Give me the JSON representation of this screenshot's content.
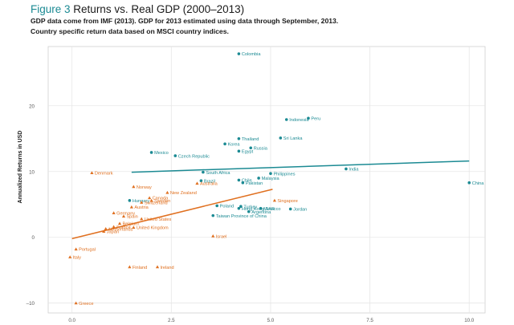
{
  "figure": {
    "number": "Figure 3",
    "title": "Returns vs. Real GDP (2000–2013)",
    "subtitle_lines": [
      "GDP data come from IMF (2013). GDP for 2013 estimated using data through September, 2013.",
      "Country specific return data based on MSCI country indices."
    ]
  },
  "colors": {
    "developed": "#e07020",
    "emerging": "#1b8a93",
    "accent": "#1b8a93",
    "grid": "#e6e6e6",
    "axis_text": "#555555"
  },
  "chart_data": {
    "type": "scatter",
    "title": "Returns vs. Real GDP (2000–2013)",
    "xlabel": "",
    "ylabel": "Annualized Returns in USD",
    "xlim": [
      -0.6,
      10.4
    ],
    "ylim": [
      -11.5,
      29
    ],
    "x_ticks": [
      0.0,
      2.5,
      5.0,
      7.5,
      10.0
    ],
    "x_tick_labels": [
      "0.0",
      "2.5",
      "5.0",
      "7.5",
      "10.0"
    ],
    "y_ticks": [
      -10,
      0,
      10,
      20
    ],
    "y_tick_labels": [
      "–10",
      "0",
      "10",
      "20"
    ],
    "grid": true,
    "series": [
      {
        "group": "emerging",
        "marker": "circle",
        "trend_line": [
          [
            1.5,
            9.9
          ],
          [
            10.0,
            11.6
          ]
        ],
        "points": [
          {
            "label": "Colombia",
            "x": 4.2,
            "y": 27.9
          },
          {
            "label": "Peru",
            "x": 5.95,
            "y": 18.1
          },
          {
            "label": "Indonesia",
            "x": 5.4,
            "y": 17.9
          },
          {
            "label": "Sri Lanka",
            "x": 5.25,
            "y": 15.1
          },
          {
            "label": "Thailand",
            "x": 4.2,
            "y": 15.0
          },
          {
            "label": "Korea",
            "x": 3.85,
            "y": 14.2
          },
          {
            "label": "Russia",
            "x": 4.5,
            "y": 13.6
          },
          {
            "label": "Egypt",
            "x": 4.2,
            "y": 13.1
          },
          {
            "label": "Mexico",
            "x": 2.0,
            "y": 12.9
          },
          {
            "label": "Czech Republic",
            "x": 2.6,
            "y": 12.4
          },
          {
            "label": "India",
            "x": 6.9,
            "y": 10.4
          },
          {
            "label": "South Africa",
            "x": 3.3,
            "y": 9.9
          },
          {
            "label": "Philippines",
            "x": 5.0,
            "y": 9.7
          },
          {
            "label": "Malaysia",
            "x": 4.7,
            "y": 9.0
          },
          {
            "label": "Chile",
            "x": 4.2,
            "y": 8.7
          },
          {
            "label": "Brazil",
            "x": 3.25,
            "y": 8.6
          },
          {
            "label": "Pakistan",
            "x": 4.3,
            "y": 8.3
          },
          {
            "label": "China",
            "x": 10.0,
            "y": 8.3
          },
          {
            "label": "Hungary",
            "x": 1.45,
            "y": 5.6
          },
          {
            "label": "Poland",
            "x": 3.65,
            "y": 4.8
          },
          {
            "label": "Turkey",
            "x": 4.25,
            "y": 4.7
          },
          {
            "label": "Hong Kong SAR",
            "x": 4.2,
            "y": 4.4
          },
          {
            "label": "Morocco",
            "x": 4.75,
            "y": 4.4
          },
          {
            "label": "Jordan",
            "x": 5.5,
            "y": 4.3
          },
          {
            "label": "Argentina",
            "x": 4.45,
            "y": 3.9
          },
          {
            "label": "Taiwan Province of China",
            "x": 3.55,
            "y": 3.3
          }
        ]
      },
      {
        "group": "developed",
        "marker": "triangle",
        "trend_line": [
          [
            0.0,
            -0.2
          ],
          [
            5.05,
            7.3
          ]
        ],
        "points": [
          {
            "label": "Denmark",
            "x": 0.5,
            "y": 9.8
          },
          {
            "label": "Norway",
            "x": 1.55,
            "y": 7.7
          },
          {
            "label": "New Zealand",
            "x": 2.4,
            "y": 6.8
          },
          {
            "label": "Australia",
            "x": 3.15,
            "y": 8.2
          },
          {
            "label": "Canada",
            "x": 1.95,
            "y": 6.0
          },
          {
            "label": "Sweden",
            "x": 2.0,
            "y": 5.6
          },
          {
            "label": "Switzerland",
            "x": 1.75,
            "y": 5.3
          },
          {
            "label": "Austria",
            "x": 1.5,
            "y": 4.6
          },
          {
            "label": "Singapore",
            "x": 5.1,
            "y": 5.6
          },
          {
            "label": "Germany",
            "x": 1.05,
            "y": 3.7
          },
          {
            "label": "Spain",
            "x": 1.3,
            "y": 3.2
          },
          {
            "label": "United States",
            "x": 1.75,
            "y": 2.8
          },
          {
            "label": "Belgium",
            "x": 1.2,
            "y": 2.1
          },
          {
            "label": "France",
            "x": 1.05,
            "y": 1.6
          },
          {
            "label": "Netherlands",
            "x": 0.85,
            "y": 1.3
          },
          {
            "label": "United Kingdom",
            "x": 1.55,
            "y": 1.5
          },
          {
            "label": "Japan",
            "x": 0.8,
            "y": 0.9
          },
          {
            "label": "Israel",
            "x": 3.55,
            "y": 0.2
          },
          {
            "label": "Portugal",
            "x": 0.1,
            "y": -1.8
          },
          {
            "label": "Italy",
            "x": -0.05,
            "y": -3.0
          },
          {
            "label": "Finland",
            "x": 1.45,
            "y": -4.5
          },
          {
            "label": "Ireland",
            "x": 2.15,
            "y": -4.5
          },
          {
            "label": "Greece",
            "x": 0.1,
            "y": -10.0
          }
        ]
      }
    ]
  }
}
